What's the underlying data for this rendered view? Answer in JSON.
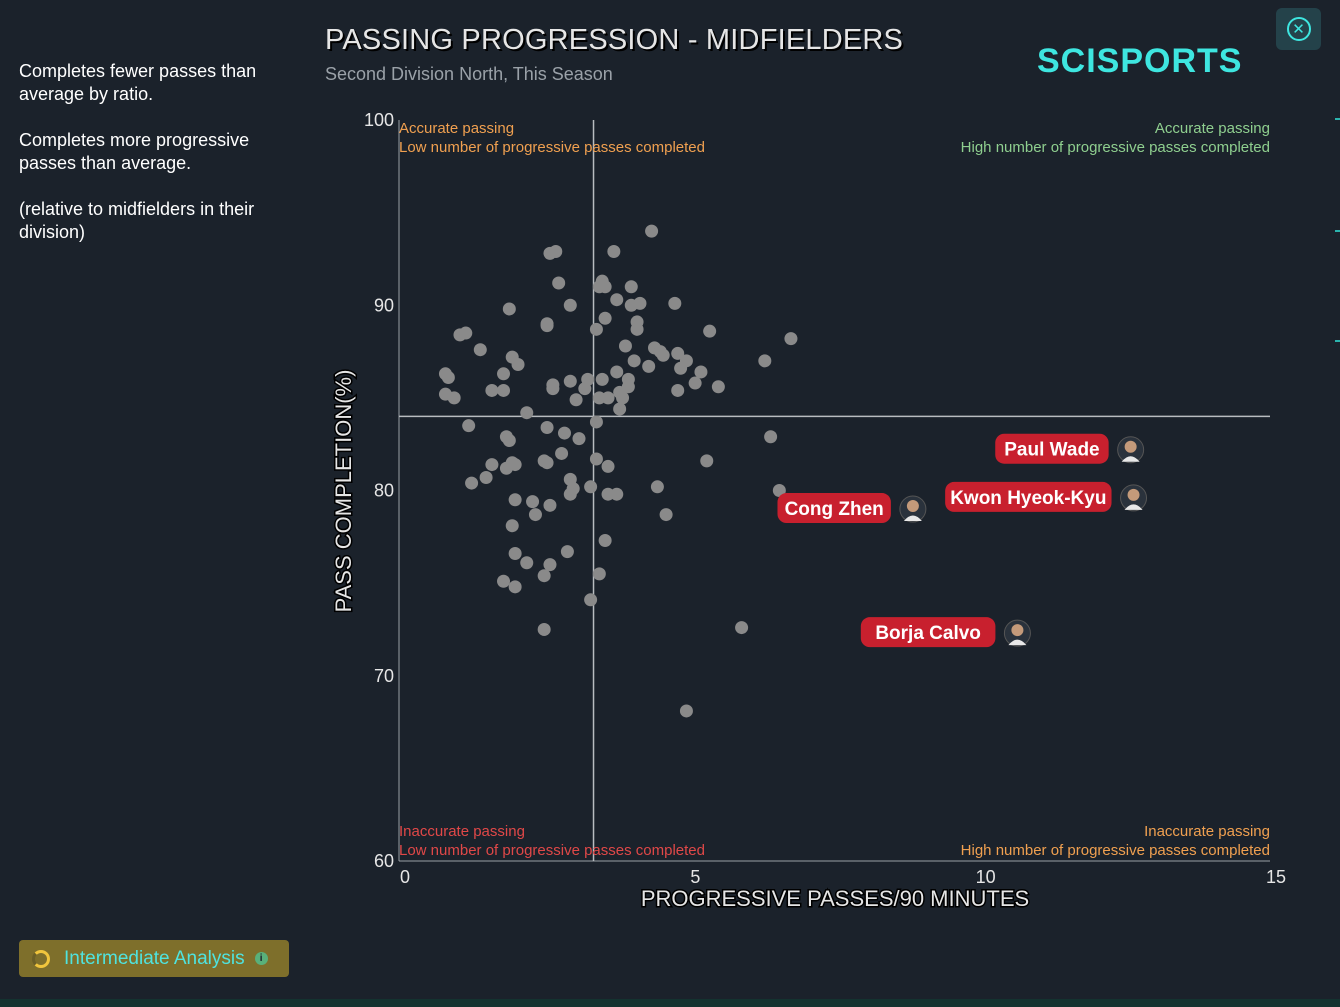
{
  "sidebar": {
    "lines": [
      "Completes fewer passes than average by ratio.",
      "Completes more progressive passes than average.",
      "(relative to midfielders in their division)"
    ]
  },
  "header": {
    "title": "PASSING PROGRESSION - MIDFIELDERS",
    "subtitle": "Second Division North, This Season",
    "logo": "SCISPORTS",
    "close_icon": "close-icon"
  },
  "footer": {
    "analysis_label": "Intermediate Analysis",
    "info_icon": "info-icon",
    "info_glyph": "i"
  },
  "colors": {
    "background": "#1b222b",
    "accent": "#3ee6e0",
    "dot": "#8a8a8a",
    "label_bg": "#c8202e",
    "orange": "#f0a050",
    "green": "#8fcf8f",
    "red": "#e04848"
  },
  "chart_data": {
    "type": "scatter",
    "title": "PASSING PROGRESSION - MIDFIELDERS",
    "xlabel": "PROGRESSIVE PASSES/90 MINUTES",
    "ylabel": "PASS COMPLETION(%)",
    "xlim": [
      0,
      15
    ],
    "ylim": [
      60,
      100
    ],
    "xticks": [
      0,
      5,
      10,
      15
    ],
    "yticks": [
      60,
      70,
      80,
      90,
      100
    ],
    "reference_lines": {
      "x": 3.35,
      "y": 84
    },
    "quadrants": {
      "top_left": [
        "Accurate passing",
        "Low number of progressive passes completed"
      ],
      "top_right": [
        "Accurate passing",
        "High number of progressive passes completed"
      ],
      "bottom_left": [
        "Inaccurate passing",
        "Low number of progressive passes completed"
      ],
      "bottom_right": [
        "Inaccurate passing",
        "High number of progressive passes completed"
      ]
    },
    "highlighted": [
      {
        "name": "Paul Wade",
        "x": 12.6,
        "y": 82.2
      },
      {
        "name": "Kwon Hyeok-Kyu",
        "x": 12.65,
        "y": 79.6
      },
      {
        "name": "Cong Zhen",
        "x": 8.85,
        "y": 79.0
      },
      {
        "name": "Borja Calvo",
        "x": 10.65,
        "y": 72.3
      }
    ],
    "points": [
      [
        0.8,
        86.3
      ],
      [
        0.85,
        86.1
      ],
      [
        0.8,
        85.2
      ],
      [
        0.95,
        85.0
      ],
      [
        1.05,
        88.4
      ],
      [
        1.15,
        88.5
      ],
      [
        1.4,
        87.6
      ],
      [
        1.2,
        83.5
      ],
      [
        1.25,
        80.4
      ],
      [
        1.5,
        80.7
      ],
      [
        1.6,
        81.4
      ],
      [
        1.6,
        85.4
      ],
      [
        1.8,
        85.4
      ],
      [
        1.8,
        86.3
      ],
      [
        1.85,
        82.9
      ],
      [
        1.9,
        82.7
      ],
      [
        1.85,
        81.2
      ],
      [
        1.95,
        81.5
      ],
      [
        2.0,
        81.4
      ],
      [
        1.9,
        89.8
      ],
      [
        1.95,
        87.2
      ],
      [
        2.05,
        86.8
      ],
      [
        2.0,
        79.5
      ],
      [
        1.95,
        78.1
      ],
      [
        2.0,
        76.6
      ],
      [
        2.2,
        76.1
      ],
      [
        1.8,
        75.1
      ],
      [
        2.0,
        74.8
      ],
      [
        2.2,
        84.2
      ],
      [
        2.3,
        79.4
      ],
      [
        2.35,
        78.7
      ],
      [
        2.5,
        81.6
      ],
      [
        2.55,
        81.5
      ],
      [
        2.55,
        83.4
      ],
      [
        2.6,
        79.2
      ],
      [
        2.5,
        75.4
      ],
      [
        2.6,
        76.0
      ],
      [
        2.5,
        72.5
      ],
      [
        2.55,
        88.9
      ],
      [
        2.55,
        89.0
      ],
      [
        2.65,
        85.5
      ],
      [
        2.65,
        85.7
      ],
      [
        2.6,
        92.8
      ],
      [
        2.7,
        92.9
      ],
      [
        2.75,
        91.2
      ],
      [
        2.8,
        82.0
      ],
      [
        2.85,
        83.1
      ],
      [
        2.95,
        80.6
      ],
      [
        3.0,
        80.1
      ],
      [
        2.95,
        79.8
      ],
      [
        2.9,
        76.7
      ],
      [
        2.95,
        85.9
      ],
      [
        2.95,
        90.0
      ],
      [
        3.05,
        84.9
      ],
      [
        3.1,
        82.8
      ],
      [
        3.2,
        85.5
      ],
      [
        3.25,
        86.0
      ],
      [
        3.3,
        80.2
      ],
      [
        3.3,
        74.1
      ],
      [
        3.4,
        83.7
      ],
      [
        3.4,
        81.7
      ],
      [
        3.45,
        85.0
      ],
      [
        3.4,
        88.7
      ],
      [
        3.45,
        91.0
      ],
      [
        3.5,
        91.3
      ],
      [
        3.55,
        91.0
      ],
      [
        3.55,
        89.3
      ],
      [
        3.5,
        86.0
      ],
      [
        3.6,
        85.0
      ],
      [
        3.6,
        81.3
      ],
      [
        3.6,
        79.8
      ],
      [
        3.55,
        77.3
      ],
      [
        3.45,
        75.5
      ],
      [
        3.7,
        92.9
      ],
      [
        3.75,
        90.3
      ],
      [
        3.75,
        86.4
      ],
      [
        3.8,
        85.3
      ],
      [
        3.8,
        84.4
      ],
      [
        3.85,
        85.0
      ],
      [
        3.9,
        87.8
      ],
      [
        3.95,
        86.0
      ],
      [
        3.95,
        85.6
      ],
      [
        3.75,
        79.8
      ],
      [
        4.0,
        91.0
      ],
      [
        4.0,
        90.0
      ],
      [
        4.05,
        87.0
      ],
      [
        4.1,
        88.7
      ],
      [
        4.1,
        89.1
      ],
      [
        4.15,
        90.1
      ],
      [
        4.3,
        86.7
      ],
      [
        4.35,
        94.0
      ],
      [
        4.4,
        87.7
      ],
      [
        4.5,
        87.5
      ],
      [
        4.55,
        87.3
      ],
      [
        4.45,
        80.2
      ],
      [
        4.6,
        78.7
      ],
      [
        4.75,
        90.1
      ],
      [
        4.8,
        87.4
      ],
      [
        4.85,
        86.6
      ],
      [
        4.8,
        85.4
      ],
      [
        4.95,
        87.0
      ],
      [
        5.1,
        85.8
      ],
      [
        5.2,
        86.4
      ],
      [
        5.35,
        88.6
      ],
      [
        5.3,
        81.6
      ],
      [
        5.5,
        85.6
      ],
      [
        5.9,
        72.6
      ],
      [
        4.95,
        68.1
      ],
      [
        6.3,
        87.0
      ],
      [
        6.4,
        82.9
      ],
      [
        6.55,
        80.0
      ],
      [
        6.75,
        88.2
      ]
    ]
  }
}
